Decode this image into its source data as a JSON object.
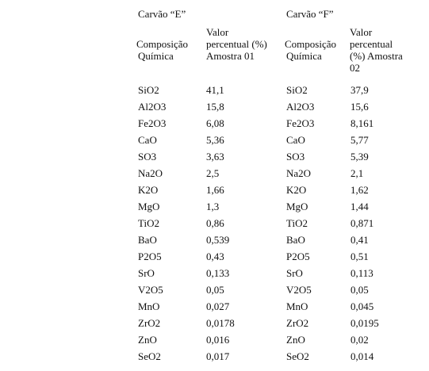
{
  "tables": [
    {
      "title": "Carvão “E”",
      "col1_header": [
        "Composição",
        "Química"
      ],
      "col2_header": [
        "Valor",
        "percentual (%)",
        "Amostra 01"
      ],
      "rows": [
        [
          "SiO2",
          "41,1"
        ],
        [
          "Al2O3",
          "15,8"
        ],
        [
          "Fe2O3",
          "6,08"
        ],
        [
          "CaO",
          "5,36"
        ],
        [
          "SO3",
          "3,63"
        ],
        [
          "Na2O",
          "2,5"
        ],
        [
          "K2O",
          "1,66"
        ],
        [
          "MgO",
          "1,3"
        ],
        [
          "TiO2",
          "0,86"
        ],
        [
          "BaO",
          "0,539"
        ],
        [
          "P2O5",
          "0,43"
        ],
        [
          "SrO",
          "0,133"
        ],
        [
          "V2O5",
          "0,05"
        ],
        [
          "MnO",
          "0,027"
        ],
        [
          "ZrO2",
          "0,0178"
        ],
        [
          "ZnO",
          "0,016"
        ],
        [
          "SeO2",
          "0,017"
        ]
      ]
    },
    {
      "title": "Carvão “F”",
      "col1_header": [
        "Composição",
        "Química"
      ],
      "col2_header": [
        "Valor",
        "percentual",
        "(%) Amostra",
        "02"
      ],
      "rows": [
        [
          "SiO2",
          "37,9"
        ],
        [
          "Al2O3",
          "15,6"
        ],
        [
          "Fe2O3",
          "8,161"
        ],
        [
          "CaO",
          "5,77"
        ],
        [
          "SO3",
          "5,39"
        ],
        [
          "Na2O",
          "2,1"
        ],
        [
          "K2O",
          "1,62"
        ],
        [
          "MgO",
          "1,44"
        ],
        [
          "TiO2",
          "0,871"
        ],
        [
          "BaO",
          "0,41"
        ],
        [
          "P2O5",
          "0,51"
        ],
        [
          "SrO",
          "0,113"
        ],
        [
          "V2O5",
          "0,05"
        ],
        [
          "MnO",
          "0,045"
        ],
        [
          "ZrO2",
          "0,0195"
        ],
        [
          "ZnO",
          "0,02"
        ],
        [
          "SeO2",
          "0,014"
        ]
      ]
    }
  ]
}
